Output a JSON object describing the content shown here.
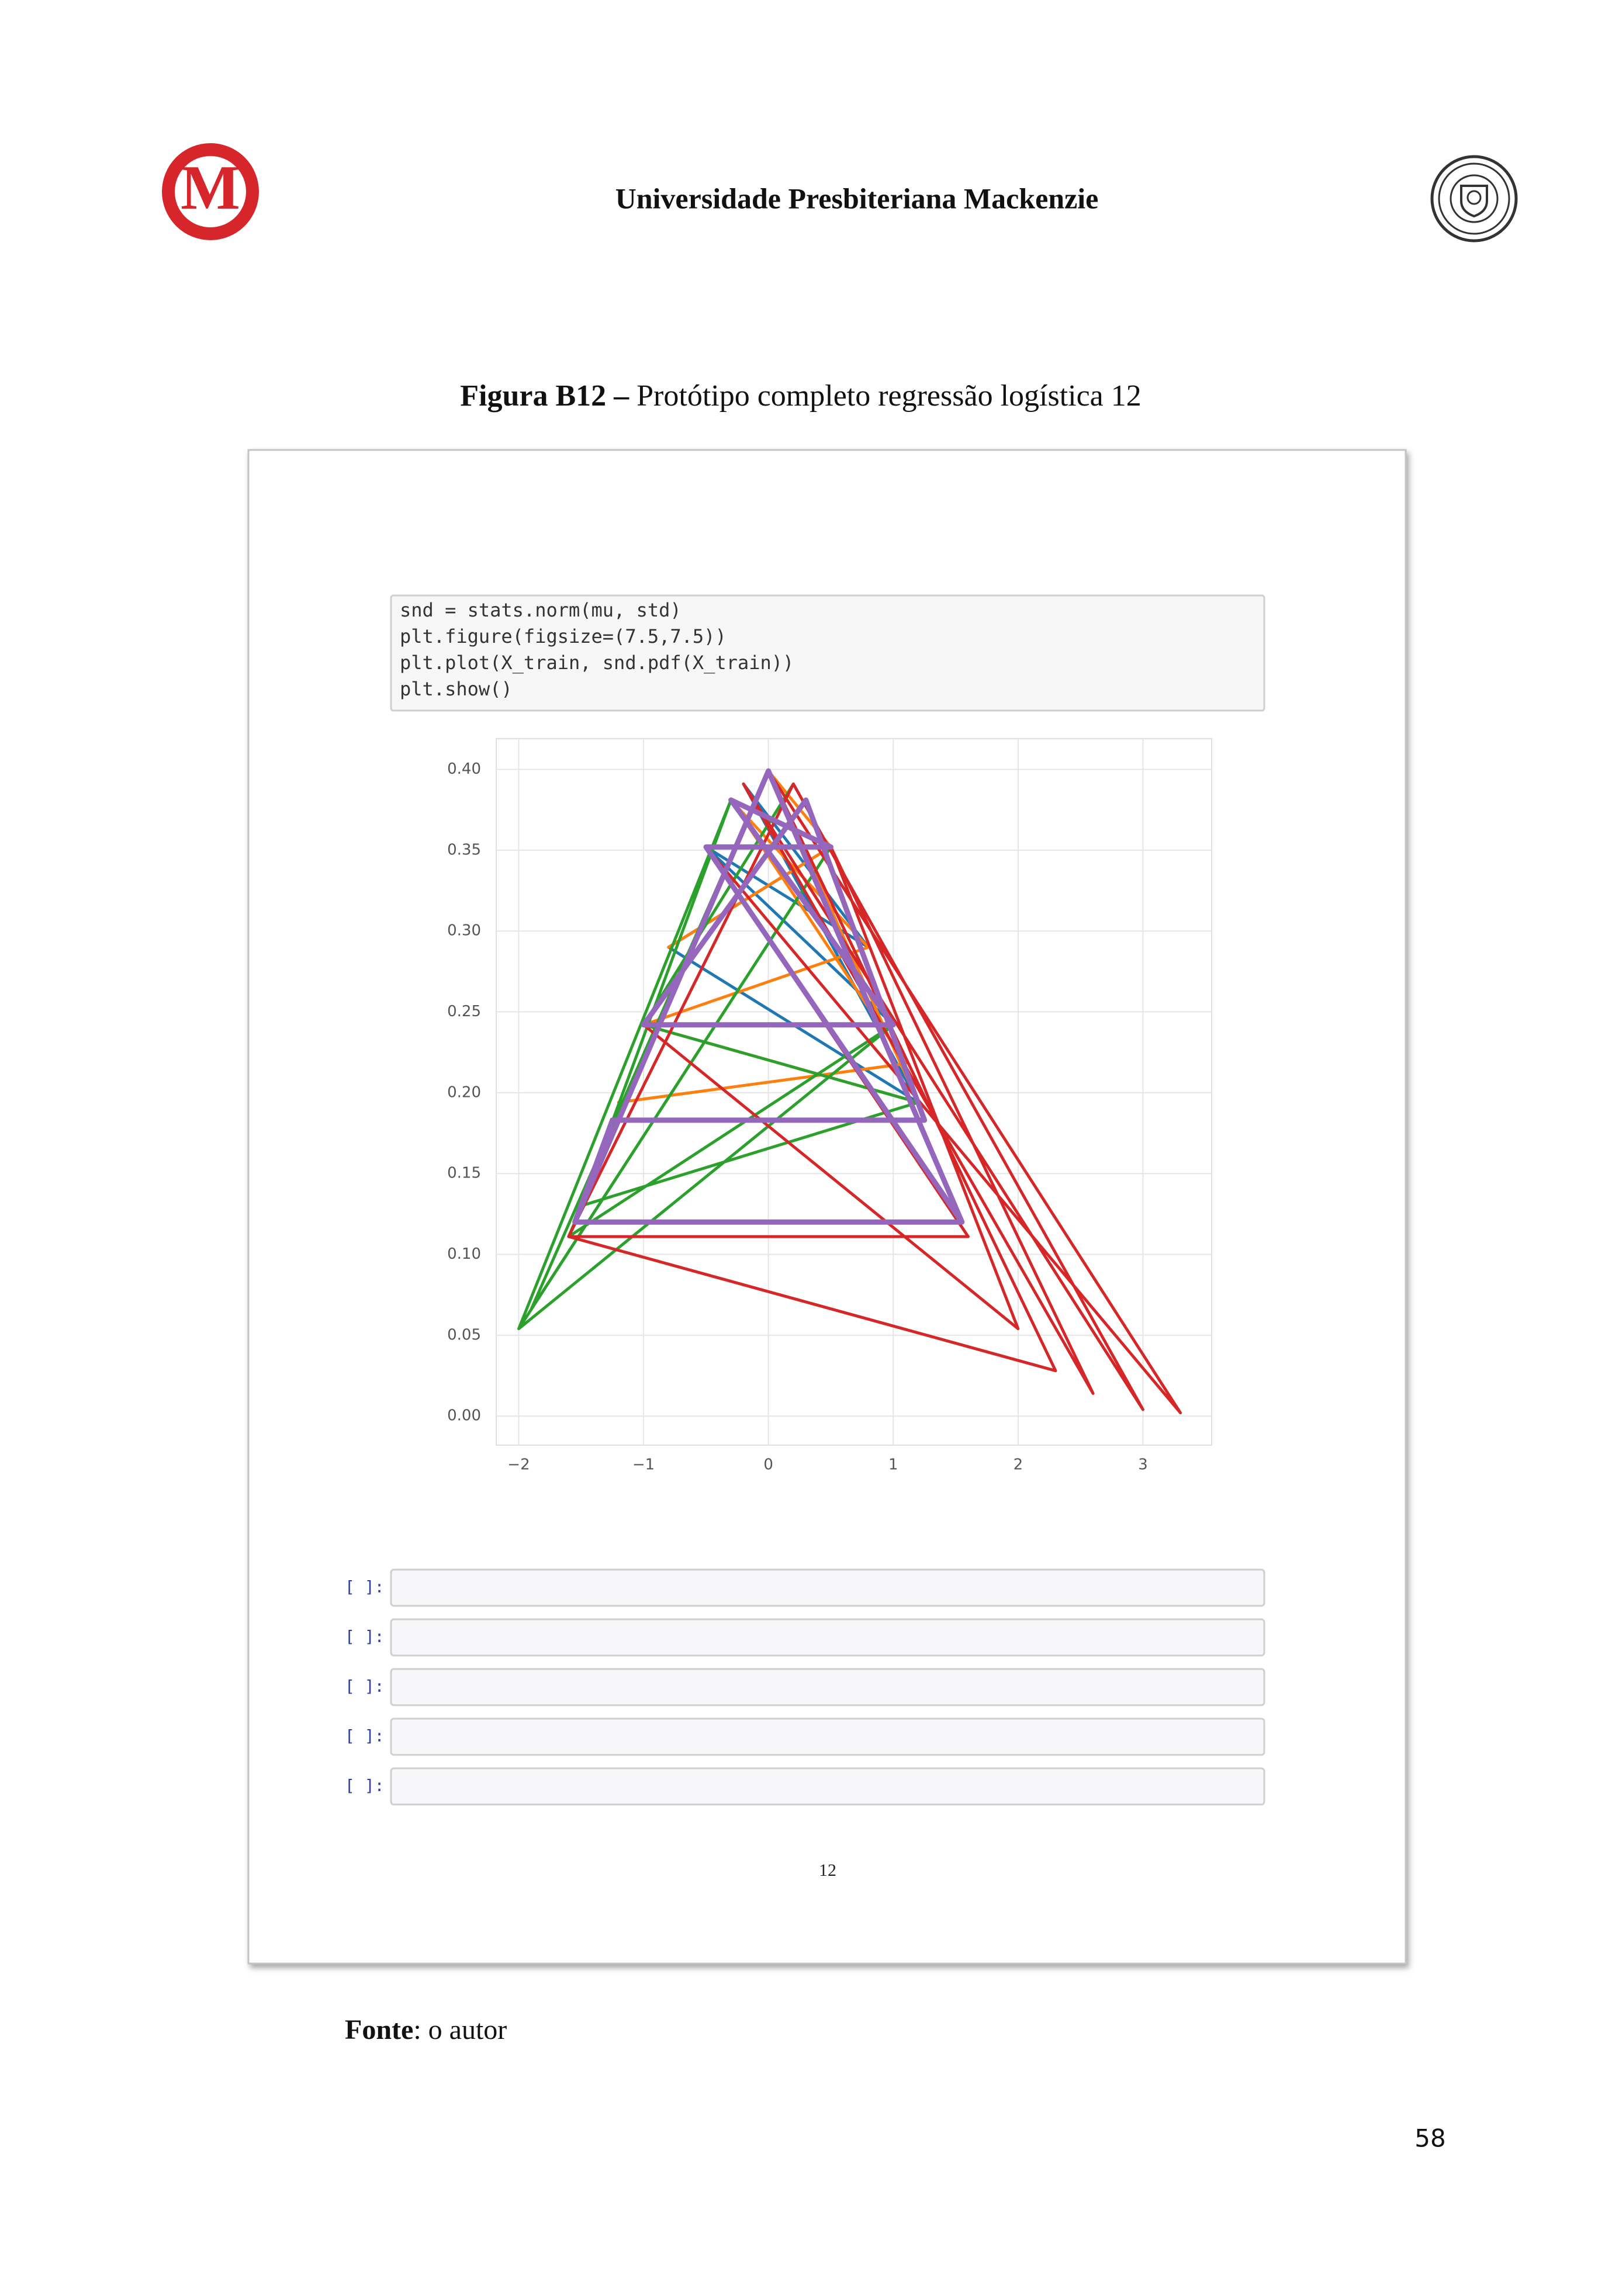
{
  "logo": {
    "letter": "M"
  },
  "header": {
    "institution": "Universidade Presbiteriana Mackenzie"
  },
  "figure": {
    "label": "Figura B12 –",
    "caption": " Protótipo completo regressão logística 12"
  },
  "notebook": {
    "code": [
      "snd = stats.norm(mu, std)",
      "plt.figure(figsize=(7.5,7.5))",
      "plt.plot(X_train, snd.pdf(X_train))",
      "plt.show()"
    ],
    "empty_cells": [
      "[ ]:",
      "[ ]:",
      "[ ]:",
      "[ ]:",
      "[ ]:"
    ],
    "page_number": "12"
  },
  "chart_data": {
    "type": "line",
    "xlim": [
      -2.18,
      3.55
    ],
    "ylim": [
      -0.018,
      0.419
    ],
    "xticks": [
      {
        "value": -2,
        "label": "−2"
      },
      {
        "value": -1,
        "label": "−1"
      },
      0,
      1,
      2,
      3
    ],
    "yticks": [
      {
        "value": 0,
        "label": "0.00"
      },
      {
        "value": 0.05,
        "label": "0.05"
      },
      {
        "value": 0.1,
        "label": "0.10"
      },
      {
        "value": 0.15,
        "label": "0.15"
      },
      {
        "value": 0.2,
        "label": "0.20"
      },
      {
        "value": 0.25,
        "label": "0.25"
      },
      {
        "value": 0.3,
        "label": "0.30"
      },
      {
        "value": 0.35,
        "label": "0.35"
      },
      {
        "value": 0.4,
        "label": "0.40"
      }
    ],
    "grid": true,
    "series": [
      {
        "color": "#1f77b4",
        "x": [
          -1.0,
          1.0,
          -0.5,
          0.8,
          -0.2,
          1.2,
          -0.8,
          0.5
        ],
        "values": [
          0.242,
          0.242,
          0.352,
          0.29,
          0.391,
          0.194,
          0.29,
          0.352
        ]
      },
      {
        "color": "#ff7f0e",
        "x": [
          -1.2,
          1.1,
          -0.3,
          0.8,
          -1.0,
          1.2,
          0,
          0.5,
          -0.8
        ],
        "values": [
          0.194,
          0.218,
          0.381,
          0.29,
          0.242,
          0.194,
          0.399,
          0.352,
          0.29
        ]
      },
      {
        "color": "#2ca02c",
        "x": [
          -2.0,
          0.5,
          -1.9,
          0,
          -1.6,
          1.0,
          -2.0,
          -0.3,
          -1.5,
          1.2,
          -1.0,
          0.2
        ],
        "values": [
          0.054,
          0.352,
          0.066,
          0.399,
          0.111,
          0.242,
          0.054,
          0.381,
          0.13,
          0.194,
          0.242,
          0.391
        ]
      },
      {
        "color": "#d62728",
        "x": [
          -1.6,
          2.3,
          0,
          3.3,
          -0.5,
          1.6,
          -1.6,
          0.2,
          3.0,
          -0.2,
          2.6,
          0.5,
          2.0,
          -1.0,
          1.0
        ],
        "values": [
          0.111,
          0.028,
          0.399,
          0.002,
          0.352,
          0.111,
          0.111,
          0.391,
          0.004,
          0.391,
          0.014,
          0.352,
          0.054,
          0.242,
          0.242
        ]
      },
      {
        "color": "#9467bd",
        "x": [
          -1.55,
          1.55,
          0,
          -1.55,
          -1.25,
          1.25,
          0.3,
          -1.0,
          1.0,
          -0.3,
          0.5,
          -0.5,
          1.55
        ],
        "values": [
          0.12,
          0.12,
          0.399,
          0.12,
          0.183,
          0.183,
          0.381,
          0.242,
          0.242,
          0.381,
          0.352,
          0.352,
          0.12
        ]
      }
    ]
  },
  "source": {
    "label": "Fonte",
    "text": ": o autor"
  },
  "page_number": "58"
}
